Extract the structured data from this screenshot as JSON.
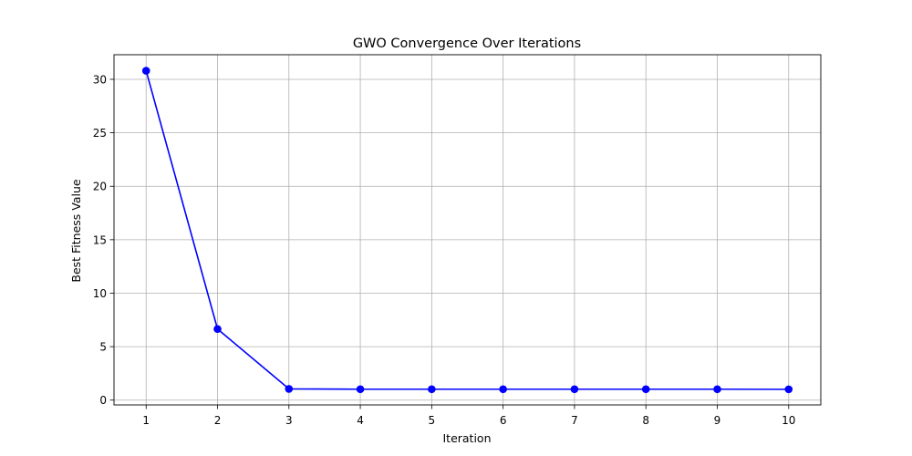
{
  "chart_data": {
    "type": "line",
    "title": "GWO Convergence Over Iterations",
    "xlabel": "Iteration",
    "ylabel": "Best Fitness Value",
    "x": [
      1,
      2,
      3,
      4,
      5,
      6,
      7,
      8,
      9,
      10
    ],
    "series": [
      {
        "values": [
          30.8,
          6.65,
          1.05,
          1.02,
          1.02,
          1.02,
          1.02,
          1.02,
          1.02,
          1.01
        ],
        "color": "#0000ff",
        "marker": "circle"
      }
    ],
    "xlim": [
      0.55,
      10.45
    ],
    "ylim": [
      -0.45,
      32.3
    ],
    "xticks": [
      1,
      2,
      3,
      4,
      5,
      6,
      7,
      8,
      9,
      10
    ],
    "yticks": [
      0,
      5,
      10,
      15,
      20,
      25,
      30
    ],
    "grid": true,
    "grid_color": "#b0b0b0"
  }
}
